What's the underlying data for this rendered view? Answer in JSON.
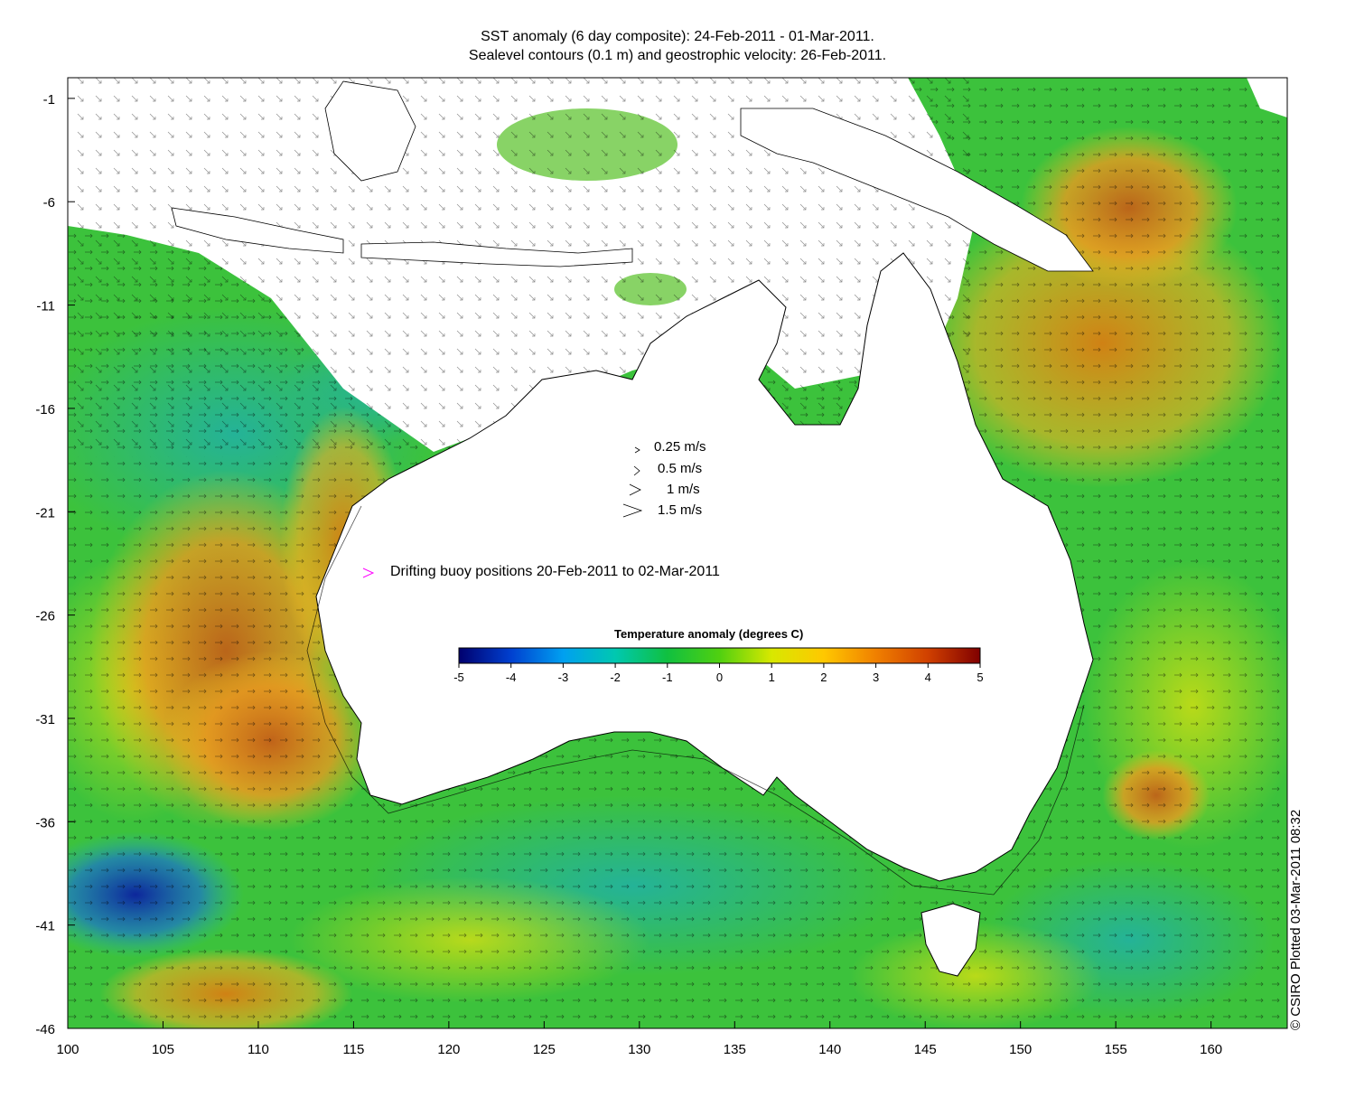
{
  "title_line1": "SST anomaly (6 day composite): 24-Feb-2011 - 01-Mar-2011.",
  "title_line2": "Sealevel contours (0.1 m) and geostrophic velocity: 26-Feb-2011.",
  "velocity_legend": [
    {
      "label": "0.25 m/s"
    },
    {
      "label": "0.5 m/s"
    },
    {
      "label": "1 m/s"
    },
    {
      "label": "1.5 m/s"
    }
  ],
  "buoy_legend": {
    "label": "Drifting buoy positions 20-Feb-2011 to 02-Mar-2011",
    "color": "#ff00ff"
  },
  "colorbar": {
    "title": "Temperature anomaly (degrees C)",
    "min": -5,
    "max": 5,
    "ticks": [
      "-5",
      "-4",
      "-3",
      "-2",
      "-1",
      "0",
      "1",
      "2",
      "3",
      "4",
      "5"
    ],
    "colors": [
      "#00006e",
      "#0040d0",
      "#00a0f0",
      "#00c8b0",
      "#10c040",
      "#50d010",
      "#d8e800",
      "#ffc800",
      "#f08000",
      "#d04000",
      "#800000"
    ]
  },
  "axes": {
    "x_ticks": [
      "100",
      "105",
      "110",
      "115",
      "120",
      "125",
      "130",
      "135",
      "140",
      "145",
      "150",
      "155",
      "160"
    ],
    "y_ticks": [
      "-1",
      "-6",
      "-11",
      "-16",
      "-21",
      "-26",
      "-31",
      "-36",
      "-41",
      "-46"
    ],
    "lon_range": [
      100,
      164
    ],
    "lat_range": [
      -46,
      0
    ]
  },
  "credit": "© CSIRO Plotted 03-Mar-2011 08:32",
  "colors": {
    "ocean_base": "#3cc23c",
    "warm": "#e08a10",
    "hot": "#b84a10",
    "cool": "#20b0a0",
    "cold": "#0a2ab0",
    "land": "#ffffff"
  }
}
